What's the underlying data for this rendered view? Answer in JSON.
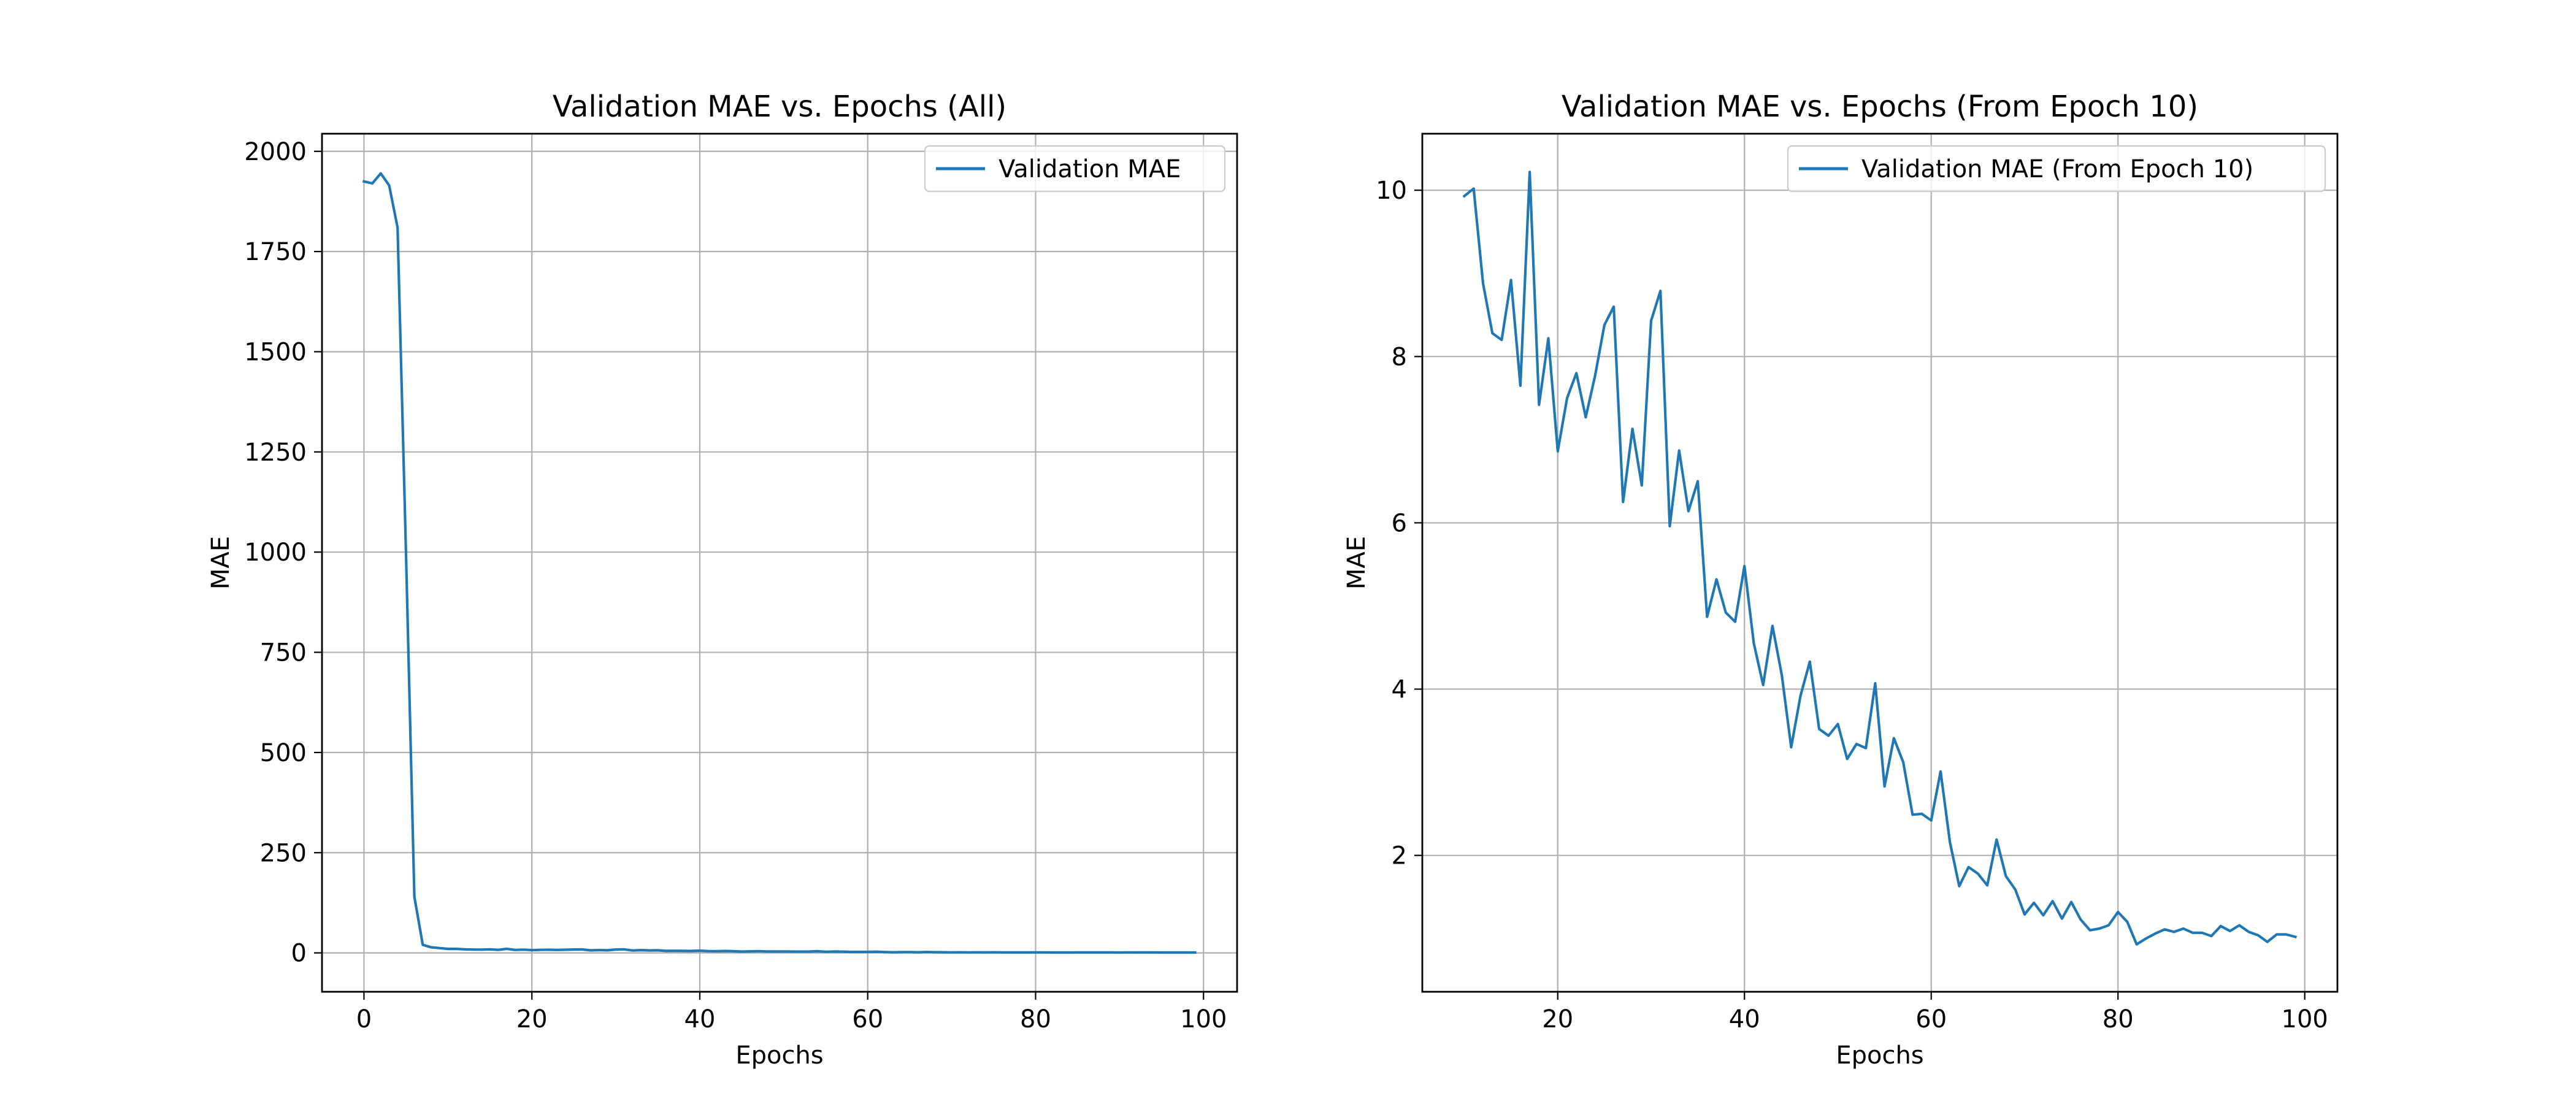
{
  "chart_data": [
    {
      "type": "line",
      "title": "Validation MAE vs. Epochs (All)",
      "xlabel": "Epochs",
      "ylabel": "MAE",
      "xlim": [
        -5,
        104
      ],
      "ylim": [
        -97,
        2044
      ],
      "xticks": [
        0,
        20,
        40,
        60,
        80,
        100
      ],
      "yticks": [
        0,
        250,
        500,
        750,
        1000,
        1250,
        1500,
        1750,
        2000
      ],
      "grid": true,
      "legend_position": "top-right",
      "series": [
        {
          "name": "Validation MAE",
          "color": "#1f77b4",
          "x": [
            0,
            1,
            2,
            3,
            4,
            5,
            6,
            7,
            8,
            9,
            10,
            11,
            12,
            13,
            14,
            15,
            16,
            17,
            18,
            19,
            20,
            21,
            22,
            23,
            24,
            25,
            26,
            27,
            28,
            29,
            30,
            31,
            32,
            33,
            34,
            35,
            36,
            37,
            38,
            39,
            40,
            41,
            42,
            43,
            44,
            45,
            46,
            47,
            48,
            49,
            50,
            51,
            52,
            53,
            54,
            55,
            56,
            57,
            58,
            59,
            60,
            61,
            62,
            63,
            64,
            65,
            66,
            67,
            68,
            69,
            70,
            71,
            72,
            73,
            74,
            75,
            76,
            77,
            78,
            79,
            80,
            81,
            82,
            83,
            84,
            85,
            86,
            87,
            88,
            89,
            90,
            91,
            92,
            93,
            94,
            95,
            96,
            97,
            98,
            99
          ],
          "y": [
            1925,
            1920,
            1945,
            1915,
            1810,
            1000,
            140,
            20,
            14,
            12,
            10,
            10,
            8.9,
            8.3,
            8.2,
            8.9,
            7.6,
            10.2,
            7.4,
            8.2,
            6.9,
            7.5,
            7.8,
            7.3,
            7.8,
            8.4,
            8.6,
            6.3,
            7.1,
            6.4,
            8.4,
            8.8,
            6,
            6.9,
            6.1,
            6.5,
            4.9,
            5.3,
            4.9,
            4.8,
            5.5,
            4.5,
            4.1,
            4.8,
            4.1,
            3.3,
            3.9,
            4.3,
            3.5,
            3.4,
            3.6,
            3.2,
            3.3,
            3.3,
            4.1,
            2.8,
            3.4,
            3.1,
            2.5,
            2.5,
            2.4,
            3,
            2.2,
            1.6,
            1.9,
            1.8,
            1.6,
            2.2,
            1.7,
            1.6,
            1.3,
            1.4,
            1.3,
            1.4,
            1.2,
            1.4,
            1.2,
            1.1,
            1.1,
            1.1,
            1.3,
            1.2,
            0.9,
            1,
            1,
            1.1,
            1.1,
            1.1,
            1.1,
            1.1,
            1,
            1.2,
            1.1,
            1.2,
            1.1,
            1,
            0.9,
            1,
            1,
            1
          ]
        }
      ]
    },
    {
      "type": "line",
      "title": "Validation MAE vs. Epochs (From Epoch 10)",
      "xlabel": "Epochs",
      "ylabel": "MAE",
      "xlim": [
        5.5,
        103.5
      ],
      "ylim": [
        0.36,
        10.68
      ],
      "xticks": [
        20,
        40,
        60,
        80,
        100
      ],
      "yticks": [
        2,
        4,
        6,
        8,
        10
      ],
      "grid": true,
      "legend_position": "top-right",
      "series": [
        {
          "name": "Validation MAE (From Epoch 10)",
          "color": "#1f77b4",
          "x": [
            10,
            11,
            12,
            13,
            14,
            15,
            16,
            17,
            18,
            19,
            20,
            21,
            22,
            23,
            24,
            25,
            26,
            27,
            28,
            29,
            30,
            31,
            32,
            33,
            34,
            35,
            36,
            37,
            38,
            39,
            40,
            41,
            42,
            43,
            44,
            45,
            46,
            47,
            48,
            49,
            50,
            51,
            52,
            53,
            54,
            55,
            56,
            57,
            58,
            59,
            60,
            61,
            62,
            63,
            64,
            65,
            66,
            67,
            68,
            69,
            70,
            71,
            72,
            73,
            74,
            75,
            76,
            77,
            78,
            79,
            80,
            81,
            82,
            83,
            84,
            85,
            86,
            87,
            88,
            89,
            90,
            91,
            92,
            93,
            94,
            95,
            96,
            97,
            98,
            99
          ],
          "y": [
            9.93,
            10.02,
            8.88,
            8.28,
            8.2,
            8.92,
            7.65,
            10.22,
            7.42,
            8.22,
            6.86,
            7.5,
            7.8,
            7.27,
            7.77,
            8.38,
            8.6,
            6.25,
            7.13,
            6.45,
            8.43,
            8.79,
            5.96,
            6.87,
            6.14,
            6.5,
            4.87,
            5.32,
            4.92,
            4.81,
            5.48,
            4.55,
            4.05,
            4.76,
            4.17,
            3.3,
            3.92,
            4.33,
            3.52,
            3.44,
            3.58,
            3.16,
            3.34,
            3.29,
            4.07,
            2.83,
            3.41,
            3.12,
            2.49,
            2.5,
            2.42,
            3.01,
            2.16,
            1.63,
            1.86,
            1.78,
            1.64,
            2.19,
            1.75,
            1.59,
            1.29,
            1.43,
            1.28,
            1.45,
            1.24,
            1.44,
            1.23,
            1.1,
            1.12,
            1.16,
            1.32,
            1.2,
            0.93,
            1,
            1.06,
            1.11,
            1.08,
            1.12,
            1.07,
            1.07,
            1.03,
            1.15,
            1.09,
            1.16,
            1.08,
            1.04,
            0.96,
            1.05,
            1.05,
            1.02
          ]
        }
      ]
    }
  ]
}
